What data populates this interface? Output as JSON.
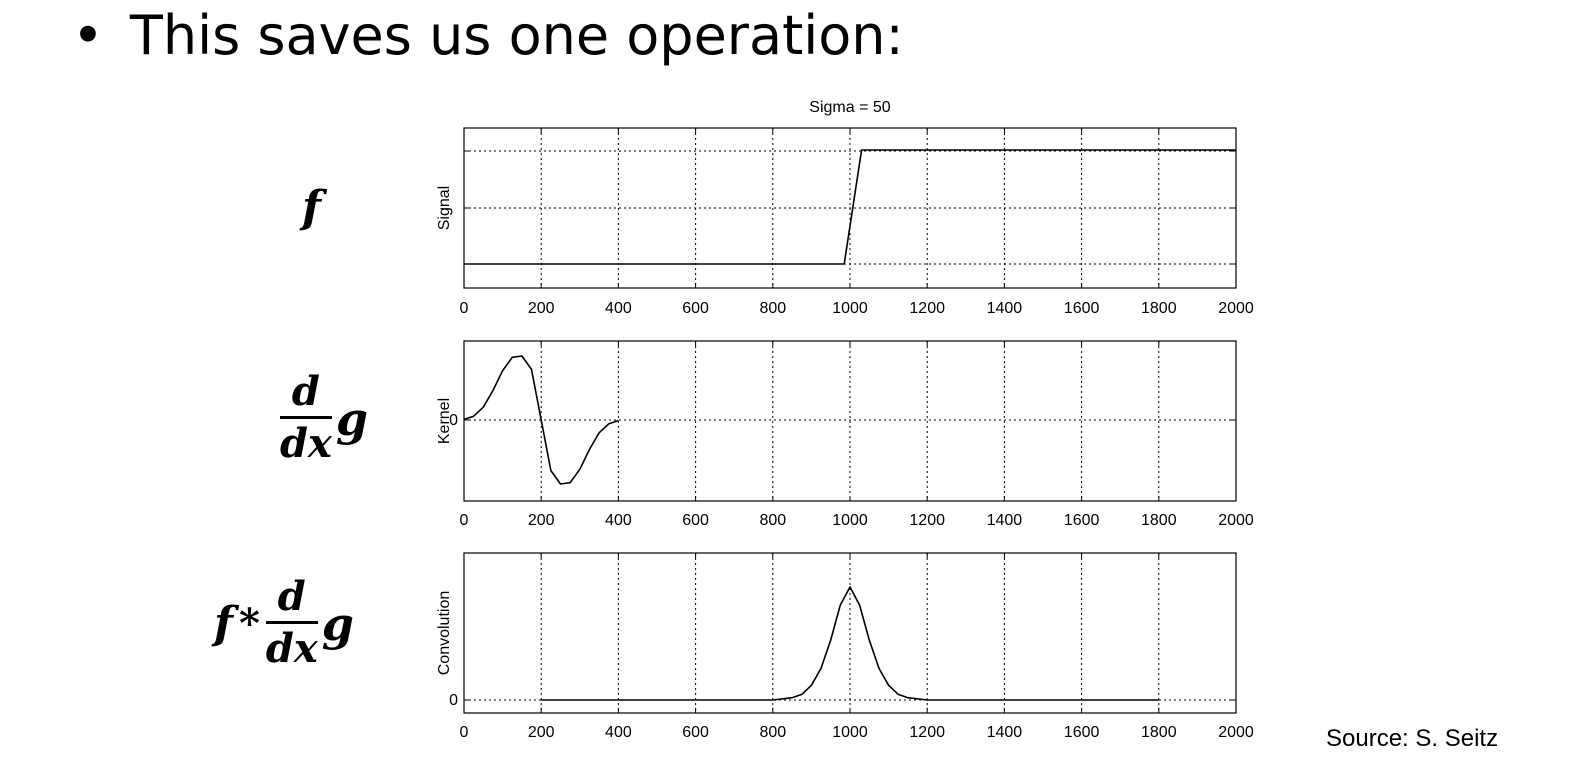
{
  "bullet": {
    "text": "This saves us one operation:"
  },
  "math": {
    "f": "f",
    "d": "d",
    "dx": "dx",
    "g": "g",
    "star": "*"
  },
  "source": "Source: S. Seitz",
  "chart_data": [
    {
      "type": "line",
      "title": "Sigma = 50",
      "ylabel": "Signal",
      "xlim": [
        0,
        2000
      ],
      "x_ticks": [
        "0",
        "200",
        "400",
        "600",
        "800",
        "1000",
        "1200",
        "1400",
        "1600",
        "1800",
        "2000"
      ],
      "grid": true,
      "series": [
        {
          "x": [
            0,
            985,
            1030,
            2000
          ],
          "values": [
            0,
            0,
            1,
            1
          ]
        }
      ]
    },
    {
      "type": "line",
      "ylabel": "Kernel",
      "y_ticks": [
        "0"
      ],
      "xlim": [
        0,
        2000
      ],
      "x_ticks": [
        "0",
        "200",
        "400",
        "600",
        "800",
        "1000",
        "1200",
        "1400",
        "1600",
        "1800",
        "2000"
      ],
      "grid": true,
      "series": [
        {
          "x": [
            0,
            25,
            50,
            75,
            100,
            125,
            150,
            175,
            200,
            225,
            250,
            275,
            300,
            325,
            350,
            375,
            400
          ],
          "values": [
            0.01,
            0.06,
            0.2,
            0.46,
            0.77,
            0.98,
            1.0,
            0.79,
            0.0,
            -0.79,
            -1.0,
            -0.98,
            -0.77,
            -0.46,
            -0.2,
            -0.06,
            -0.01
          ]
        }
      ]
    },
    {
      "type": "line",
      "ylabel": "Convolution",
      "y_ticks": [
        "0"
      ],
      "xlim": [
        0,
        2000
      ],
      "x_ticks": [
        "0",
        "200",
        "400",
        "600",
        "800",
        "1000",
        "1200",
        "1400",
        "1600",
        "1800",
        "2000"
      ],
      "grid": true,
      "series": [
        {
          "x": [
            200,
            800,
            850,
            875,
            900,
            925,
            950,
            975,
            1000,
            1025,
            1050,
            1075,
            1100,
            1125,
            1150,
            1200,
            1800
          ],
          "values": [
            0,
            0,
            0.02,
            0.05,
            0.13,
            0.28,
            0.53,
            0.84,
            1.0,
            0.84,
            0.53,
            0.28,
            0.13,
            0.05,
            0.02,
            0,
            0
          ]
        }
      ]
    }
  ]
}
